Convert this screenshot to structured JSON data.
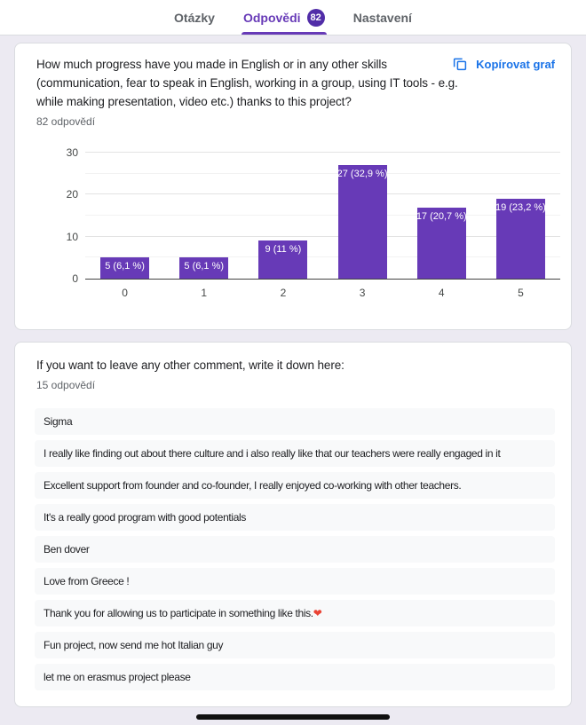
{
  "tabs": [
    {
      "label": "Otázky",
      "active": false
    },
    {
      "label": "Odpovědi",
      "badge": "82",
      "active": true
    },
    {
      "label": "Nastavení",
      "active": false
    }
  ],
  "colors": {
    "accent_purple": "#673ab7",
    "badge_purple": "#512da8",
    "link_blue": "#1a73e8",
    "page_background": "#eceaf2",
    "row_background": "#f8f9fa"
  },
  "question_card": {
    "title": "How much progress have you made in English or in any other skills (communication, fear to speak in English, working in a group, using IT tools - e.g. while making presentation, video etc.) thanks to this project?",
    "responses_label": "82 odpovědí",
    "copy_button_label": "Kopírovat graf"
  },
  "chart_data": {
    "type": "bar",
    "categories": [
      "0",
      "1",
      "2",
      "3",
      "4",
      "5"
    ],
    "values": [
      5,
      5,
      9,
      27,
      17,
      19
    ],
    "bar_labels": [
      "5 (6,1 %)",
      "5 (6,1 %)",
      "9 (11 %)",
      "27 (32,9 %)",
      "17 (20,7 %)",
      "19 (23,2 %)"
    ],
    "title": "",
    "xlabel": "",
    "ylabel": "",
    "ylim": [
      0,
      30
    ],
    "yticks": [
      0,
      10,
      20,
      30
    ],
    "minor_gridlines": [
      5,
      15,
      25
    ],
    "bar_color": "#673ab7",
    "grid": true,
    "legend": false
  },
  "comments_card": {
    "title": "If you want to leave any other comment, write it down here:",
    "responses_label": "15 odpovědí",
    "answers": [
      "Sigma",
      "I really like finding out about there culture and i also really like that our teachers were really engaged in it",
      "Excellent support from founder and co-founder, I really enjoyed co-working with other teachers.",
      "It's a really good program with good potentials",
      "Ben dover",
      "Love from Greece !",
      "Thank you for allowing us to participate in something like this.❤",
      "Fun project, now send me hot Italian guy",
      "let me on erasmus project please"
    ]
  }
}
